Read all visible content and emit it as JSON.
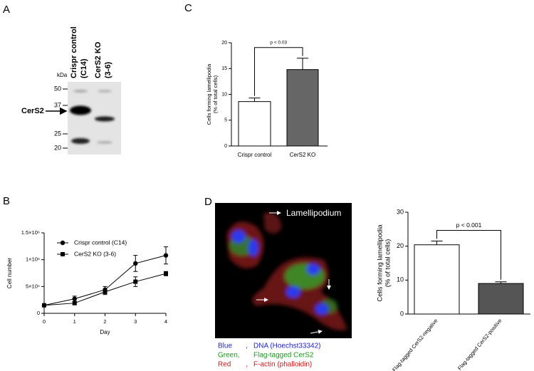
{
  "panel_labels": [
    "A",
    "B",
    "C",
    "D"
  ],
  "blot": {
    "kda_unit": "kDa",
    "markers": [
      "50",
      "37",
      "25",
      "20"
    ],
    "lanes": [
      [
        "Crispr control",
        "(C14)"
      ],
      [
        "CerS2 KO",
        "(3-6)"
      ]
    ],
    "protein": "CerS2"
  },
  "image": {
    "annotation": "Lamellipodium",
    "legend": [
      {
        "color": "Blue",
        "separator": ",",
        "label": "DNA (Hoechst33342)",
        "text_color": "#1f1fd0"
      },
      {
        "color": "Green,",
        "separator": "",
        "label": "Flag-tagged  CerS2",
        "text_color": "#1a9a1a"
      },
      {
        "color": "Red",
        "separator": ",",
        "label": "F-actin (phalloidin)",
        "text_color": "#d01a1a"
      }
    ]
  },
  "chart_data": [
    {
      "type": "bar",
      "ylabel": [
        "Cells forming lamellipodia",
        "(% of total cells)"
      ],
      "categories": [
        "Crispr control",
        "CerS2 KO"
      ],
      "values": [
        8.6,
        14.8
      ],
      "errors": [
        0.7,
        2.2
      ],
      "colors": [
        "#ffffff",
        "#666666"
      ],
      "ylim": [
        0,
        20
      ],
      "yticks": [
        0,
        5,
        10,
        15,
        20
      ],
      "annotation": "p < 0.03"
    },
    {
      "type": "line",
      "xlabel": "Day",
      "ylabel": "Cell number",
      "x": [
        0,
        1,
        2,
        3,
        4
      ],
      "xlim": [
        0,
        4
      ],
      "xticks": [
        0,
        1,
        2,
        3,
        4
      ],
      "ylim": [
        0,
        1500000
      ],
      "yticks": [
        0,
        {
          "value": 500000,
          "label": "5×10⁵"
        },
        {
          "value": 1000000,
          "label": "1×10⁶"
        },
        {
          "value": 1500000,
          "label": "1.5×10⁶"
        }
      ],
      "legend": "upper left",
      "series": [
        {
          "name": "Crispr control (C14)",
          "color": "#000000",
          "marker": "circle",
          "values": [
            150000,
            270000,
            440000,
            930000,
            1080000
          ],
          "errors": [
            null,
            50000,
            60000,
            150000,
            160000
          ]
        },
        {
          "name": "CerS2 KO (3-6)",
          "color": "#000000",
          "marker": "square",
          "values": [
            150000,
            190000,
            400000,
            590000,
            740000
          ],
          "errors": [
            null,
            30000,
            50000,
            90000,
            40000
          ]
        }
      ]
    },
    {
      "type": "bar",
      "ylabel": [
        "Cells forming lamellipodia",
        "(% of total cells)"
      ],
      "categories": [
        "Flag-tagged CerS2-negative",
        "Flag-tagged CerS2-positive"
      ],
      "values": [
        20.4,
        9.0
      ],
      "errors": [
        1.1,
        0.5
      ],
      "colors": [
        "#ffffff",
        "#555555"
      ],
      "ylim": [
        0,
        30
      ],
      "yticks": [
        0,
        10,
        20,
        30
      ],
      "annotation": "p < 0.001"
    }
  ]
}
